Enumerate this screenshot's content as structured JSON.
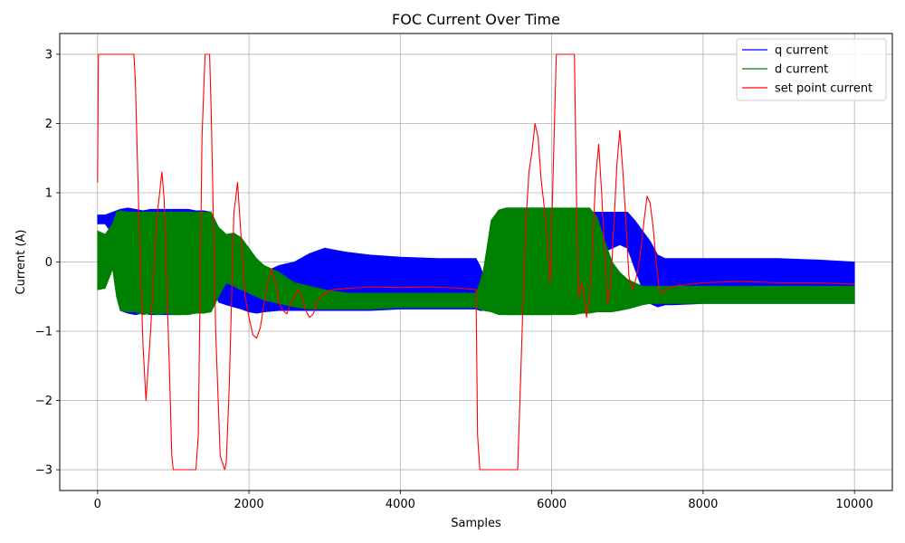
{
  "chart_data": {
    "type": "line",
    "title": "FOC Current Over Time",
    "xlabel": "Samples",
    "ylabel": "Current (A)",
    "xlim": [
      -500,
      10500
    ],
    "ylim": [
      -3.3,
      3.3
    ],
    "xticks": [
      0,
      2000,
      4000,
      6000,
      8000,
      10000
    ],
    "xtick_labels": [
      "0",
      "2000",
      "4000",
      "6000",
      "8000",
      "10000"
    ],
    "yticks": [
      -3,
      -2,
      -1,
      0,
      1,
      2,
      3
    ],
    "ytick_labels": [
      "−3",
      "−2",
      "−1",
      "0",
      "1",
      "2",
      "3"
    ],
    "grid": true,
    "legend_position": "top-right",
    "series": [
      {
        "name": "q current",
        "color": "#0000ff",
        "render": "band",
        "x": [
          0,
          100,
          200,
          250,
          300,
          400,
          500,
          600,
          700,
          800,
          900,
          1000,
          1100,
          1200,
          1300,
          1400,
          1500,
          1600,
          1700,
          1800,
          1900,
          2000,
          2100,
          2200,
          2400,
          2600,
          2800,
          3000,
          3300,
          3600,
          4000,
          4500,
          5000,
          5050,
          5100,
          5200,
          5300,
          5400,
          5500,
          5600,
          5700,
          5800,
          5900,
          6000,
          6100,
          6200,
          6300,
          6400,
          6500,
          6600,
          6700,
          6800,
          6900,
          7000,
          7100,
          7200,
          7300,
          7400,
          7500,
          7600,
          8000,
          8500,
          9000,
          9500,
          10000
        ],
        "upper": [
          0.68,
          0.68,
          0.72,
          0.74,
          0.76,
          0.78,
          0.76,
          0.74,
          0.76,
          0.76,
          0.76,
          0.76,
          0.76,
          0.76,
          0.74,
          0.74,
          0.72,
          0.3,
          0.05,
          -0.2,
          -0.3,
          -0.35,
          -0.3,
          -0.15,
          -0.05,
          0.0,
          0.12,
          0.2,
          0.14,
          0.1,
          0.07,
          0.05,
          0.05,
          -0.05,
          -0.2,
          0.6,
          0.75,
          0.78,
          0.78,
          0.78,
          0.78,
          0.78,
          0.78,
          0.76,
          0.76,
          0.76,
          0.76,
          0.74,
          0.72,
          0.72,
          0.72,
          0.72,
          0.72,
          0.72,
          0.6,
          0.45,
          0.3,
          0.1,
          0.05,
          0.05,
          0.05,
          0.05,
          0.05,
          0.03,
          0.0
        ],
        "lower": [
          0.55,
          0.55,
          0.4,
          -0.4,
          -0.7,
          -0.74,
          -0.76,
          -0.74,
          -0.76,
          -0.76,
          -0.76,
          -0.76,
          -0.76,
          -0.74,
          -0.74,
          -0.72,
          -0.3,
          -0.58,
          -0.62,
          -0.65,
          -0.68,
          -0.72,
          -0.74,
          -0.72,
          -0.7,
          -0.7,
          -0.7,
          -0.7,
          -0.7,
          -0.7,
          -0.68,
          -0.68,
          -0.68,
          -0.7,
          -0.7,
          -0.7,
          -0.75,
          -0.76,
          -0.76,
          -0.76,
          -0.76,
          -0.76,
          -0.76,
          -0.76,
          -0.74,
          -0.74,
          -0.72,
          -0.72,
          -0.2,
          0.05,
          0.15,
          0.2,
          0.25,
          0.2,
          -0.1,
          -0.4,
          -0.6,
          -0.65,
          -0.62,
          -0.62,
          -0.6,
          -0.6,
          -0.6,
          -0.6,
          -0.6
        ]
      },
      {
        "name": "d current",
        "color": "#008000",
        "render": "band",
        "x": [
          0,
          100,
          200,
          250,
          300,
          400,
          500,
          600,
          700,
          800,
          900,
          1000,
          1100,
          1200,
          1300,
          1400,
          1500,
          1600,
          1700,
          1800,
          1900,
          2000,
          2100,
          2200,
          2400,
          2600,
          2800,
          3000,
          3300,
          3600,
          4000,
          4500,
          5000,
          5050,
          5100,
          5200,
          5300,
          5400,
          5500,
          5600,
          5700,
          5800,
          5900,
          6000,
          6100,
          6200,
          6300,
          6400,
          6500,
          6600,
          6700,
          6800,
          6900,
          7000,
          7100,
          7200,
          7300,
          7400,
          7500,
          7600,
          8000,
          8500,
          9000,
          9500,
          10000
        ],
        "upper": [
          0.45,
          0.4,
          0.55,
          0.72,
          0.74,
          0.72,
          0.72,
          0.72,
          0.72,
          0.72,
          0.72,
          0.72,
          0.72,
          0.72,
          0.72,
          0.72,
          0.72,
          0.5,
          0.4,
          0.42,
          0.35,
          0.2,
          0.05,
          -0.05,
          -0.15,
          -0.3,
          -0.35,
          -0.4,
          -0.45,
          -0.45,
          -0.45,
          -0.45,
          -0.45,
          -0.3,
          -0.1,
          0.6,
          0.75,
          0.78,
          0.78,
          0.78,
          0.78,
          0.78,
          0.78,
          0.78,
          0.78,
          0.78,
          0.78,
          0.78,
          0.78,
          0.65,
          0.3,
          0.0,
          -0.15,
          -0.25,
          -0.3,
          -0.35,
          -0.35,
          -0.35,
          -0.35,
          -0.35,
          -0.35,
          -0.35,
          -0.35,
          -0.35,
          -0.35
        ],
        "lower": [
          -0.4,
          -0.38,
          -0.1,
          -0.5,
          -0.7,
          -0.72,
          -0.72,
          -0.76,
          -0.74,
          -0.76,
          -0.74,
          -0.76,
          -0.76,
          -0.76,
          -0.74,
          -0.74,
          -0.72,
          -0.5,
          -0.3,
          -0.35,
          -0.4,
          -0.45,
          -0.5,
          -0.55,
          -0.6,
          -0.65,
          -0.68,
          -0.68,
          -0.68,
          -0.68,
          -0.66,
          -0.66,
          -0.66,
          -0.68,
          -0.7,
          -0.72,
          -0.76,
          -0.76,
          -0.76,
          -0.76,
          -0.76,
          -0.76,
          -0.76,
          -0.76,
          -0.76,
          -0.76,
          -0.76,
          -0.74,
          -0.74,
          -0.72,
          -0.72,
          -0.72,
          -0.7,
          -0.68,
          -0.65,
          -0.62,
          -0.6,
          -0.6,
          -0.6,
          -0.6,
          -0.6,
          -0.6,
          -0.6,
          -0.6,
          -0.6
        ]
      },
      {
        "name": "set point current",
        "color": "#ff0000",
        "render": "line",
        "x": [
          0,
          10,
          30,
          480,
          500,
          550,
          600,
          640,
          700,
          780,
          850,
          880,
          950,
          980,
          1000,
          1300,
          1330,
          1380,
          1420,
          1480,
          1500,
          1560,
          1620,
          1680,
          1700,
          1740,
          1800,
          1850,
          1870,
          1900,
          1950,
          2000,
          2050,
          2100,
          2150,
          2200,
          2250,
          2300,
          2350,
          2400,
          2450,
          2500,
          2550,
          2600,
          2650,
          2700,
          2750,
          2800,
          2850,
          2900,
          2950,
          3000,
          3100,
          3300,
          3600,
          4000,
          4400,
          4800,
          5000,
          5020,
          5050,
          5550,
          5580,
          5620,
          5660,
          5700,
          5740,
          5780,
          5820,
          5860,
          5900,
          5940,
          5980,
          6000,
          6060,
          6300,
          6320,
          6340,
          6360,
          6400,
          6430,
          6460,
          6500,
          6540,
          6580,
          6620,
          6660,
          6700,
          6740,
          6780,
          6820,
          6860,
          6900,
          6940,
          6980,
          7020,
          7060,
          7100,
          7140,
          7180,
          7220,
          7260,
          7300,
          7340,
          7380,
          7420,
          7460,
          7500,
          7600,
          8000,
          8500,
          9000,
          9500,
          10000
        ],
        "y": [
          1.15,
          3.0,
          3.0,
          3.0,
          2.6,
          0.5,
          -1.2,
          -2.0,
          -1.0,
          0.6,
          1.3,
          0.9,
          -1.6,
          -2.8,
          -3.0,
          -3.0,
          -2.5,
          1.8,
          3.0,
          3.0,
          2.2,
          -1.0,
          -2.8,
          -3.0,
          -2.9,
          -1.8,
          0.7,
          1.15,
          0.8,
          0.3,
          -0.5,
          -0.8,
          -1.05,
          -1.1,
          -0.95,
          -0.6,
          -0.3,
          -0.1,
          -0.3,
          -0.6,
          -0.7,
          -0.75,
          -0.6,
          -0.5,
          -0.4,
          -0.5,
          -0.7,
          -0.8,
          -0.75,
          -0.6,
          -0.5,
          -0.45,
          -0.4,
          -0.38,
          -0.36,
          -0.37,
          -0.36,
          -0.38,
          -0.4,
          -2.5,
          -3.0,
          -3.0,
          -2.0,
          -0.6,
          0.6,
          1.3,
          1.6,
          2.0,
          1.8,
          1.2,
          0.8,
          0.3,
          -0.3,
          0.5,
          3.0,
          3.0,
          1.5,
          0.0,
          -0.5,
          -0.3,
          -0.5,
          -0.8,
          -0.5,
          0.2,
          1.2,
          1.7,
          1.0,
          0.1,
          -0.6,
          -0.3,
          0.5,
          1.4,
          1.9,
          1.3,
          0.6,
          -0.2,
          -0.4,
          -0.3,
          -0.1,
          0.2,
          0.6,
          0.95,
          0.85,
          0.5,
          0.0,
          -0.4,
          -0.45,
          -0.4,
          -0.35,
          -0.3,
          -0.28,
          -0.3,
          -0.3,
          -0.32
        ]
      }
    ]
  }
}
